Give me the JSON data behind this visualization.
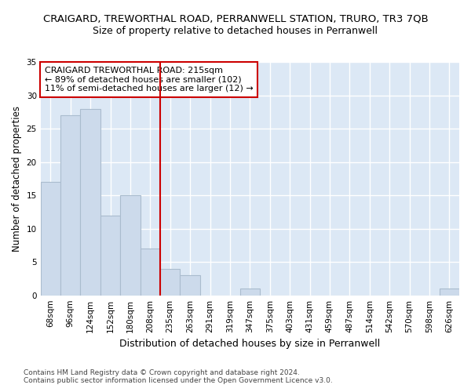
{
  "title": "CRAIGARD, TREWORTHAL ROAD, PERRANWELL STATION, TRURO, TR3 7QB",
  "subtitle": "Size of property relative to detached houses in Perranwell",
  "xlabel": "Distribution of detached houses by size in Perranwell",
  "ylabel": "Number of detached properties",
  "bar_labels": [
    "68sqm",
    "96sqm",
    "124sqm",
    "152sqm",
    "180sqm",
    "208sqm",
    "235sqm",
    "263sqm",
    "291sqm",
    "319sqm",
    "347sqm",
    "375sqm",
    "403sqm",
    "431sqm",
    "459sqm",
    "487sqm",
    "514sqm",
    "542sqm",
    "570sqm",
    "598sqm",
    "626sqm"
  ],
  "bar_values": [
    17,
    27,
    28,
    12,
    15,
    7,
    4,
    3,
    0,
    0,
    1,
    0,
    0,
    0,
    0,
    0,
    0,
    0,
    0,
    0,
    1
  ],
  "bar_color": "#ccdaeb",
  "bar_edge_color": "#aabcce",
  "vline_color": "#cc0000",
  "annotation_text": "CRAIGARD TREWORTHAL ROAD: 215sqm\n← 89% of detached houses are smaller (102)\n11% of semi-detached houses are larger (12) →",
  "ylim": [
    0,
    35
  ],
  "yticks": [
    0,
    5,
    10,
    15,
    20,
    25,
    30,
    35
  ],
  "background_color": "#dce8f5",
  "grid_color": "#ffffff",
  "fig_background": "#ffffff",
  "footer_line1": "Contains HM Land Registry data © Crown copyright and database right 2024.",
  "footer_line2": "Contains public sector information licensed under the Open Government Licence v3.0.",
  "title_fontsize": 9.5,
  "subtitle_fontsize": 9,
  "xlabel_fontsize": 9,
  "ylabel_fontsize": 8.5,
  "tick_fontsize": 7.5,
  "annotation_fontsize": 8,
  "footer_fontsize": 6.5
}
